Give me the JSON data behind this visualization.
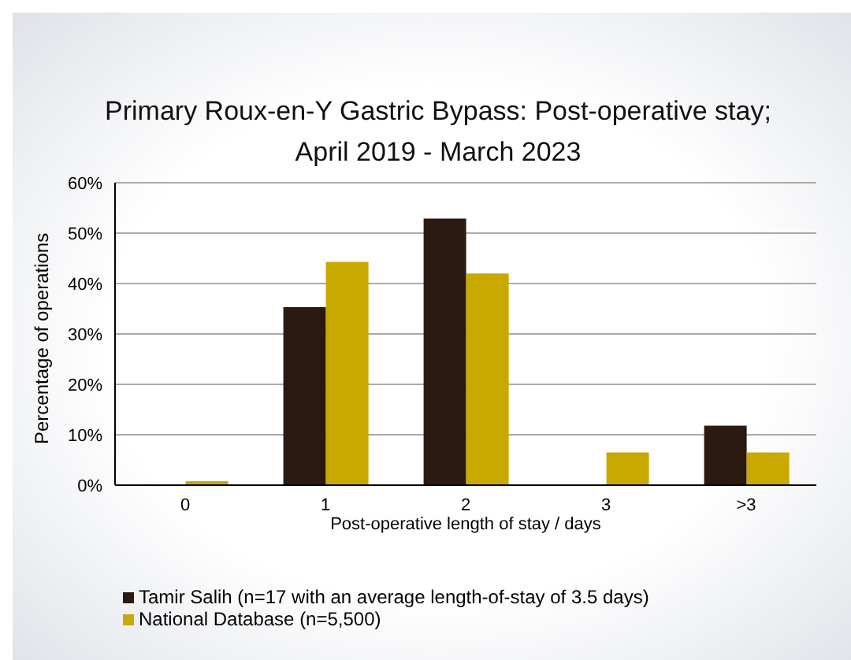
{
  "chart_data": {
    "type": "bar",
    "title": "Primary Roux-en-Y Gastric Bypass: Post-operative stay;\nApril 2019 - March 2023",
    "xlabel": "Post-operative length of stay / days",
    "ylabel": "Percentage of operations",
    "categories": [
      "0",
      "1",
      "2",
      "3",
      ">3"
    ],
    "series": [
      {
        "name": "Tamir Salih (n=17 with an average length-of-stay of 3.5 days)",
        "color": "#2b1a10",
        "values": [
          0,
          35.3,
          52.9,
          0,
          11.8
        ]
      },
      {
        "name": "National Database (n=5,500)",
        "color": "#c9a800",
        "values": [
          0.8,
          44.3,
          42.0,
          6.5,
          6.5
        ]
      }
    ],
    "ylim": [
      0,
      60
    ],
    "yticks": [
      {
        "value": 0,
        "label": "0%"
      },
      {
        "value": 10,
        "label": "10%"
      },
      {
        "value": 20,
        "label": "20%"
      },
      {
        "value": 30,
        "label": "30%"
      },
      {
        "value": 40,
        "label": "40%"
      },
      {
        "value": 50,
        "label": "50%"
      },
      {
        "value": 60,
        "label": "60%"
      }
    ],
    "grid": "y",
    "legend": "bottom"
  }
}
